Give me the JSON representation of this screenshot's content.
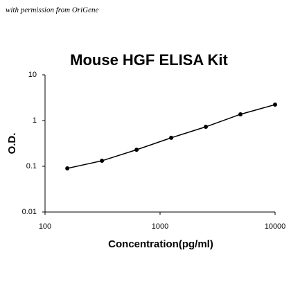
{
  "chart_data": {
    "type": "line",
    "annotation": "with permission from OriGene",
    "title": "Mouse HGF ELISA Kit",
    "xlabel": "Concentration(pg/ml)",
    "ylabel": "O.D.",
    "x": [
      156.25,
      312.5,
      625,
      1250,
      2500,
      5000,
      10000
    ],
    "values": [
      0.09,
      0.132,
      0.23,
      0.42,
      0.73,
      1.37,
      2.23
    ],
    "color": "#000000",
    "xlog": true,
    "ylog": true,
    "xlim": [
      100,
      10000
    ],
    "ylim": [
      0.01,
      10
    ],
    "xticks": [
      100,
      1000,
      10000
    ],
    "yticks": [
      0.01,
      0.1,
      1,
      10
    ]
  }
}
